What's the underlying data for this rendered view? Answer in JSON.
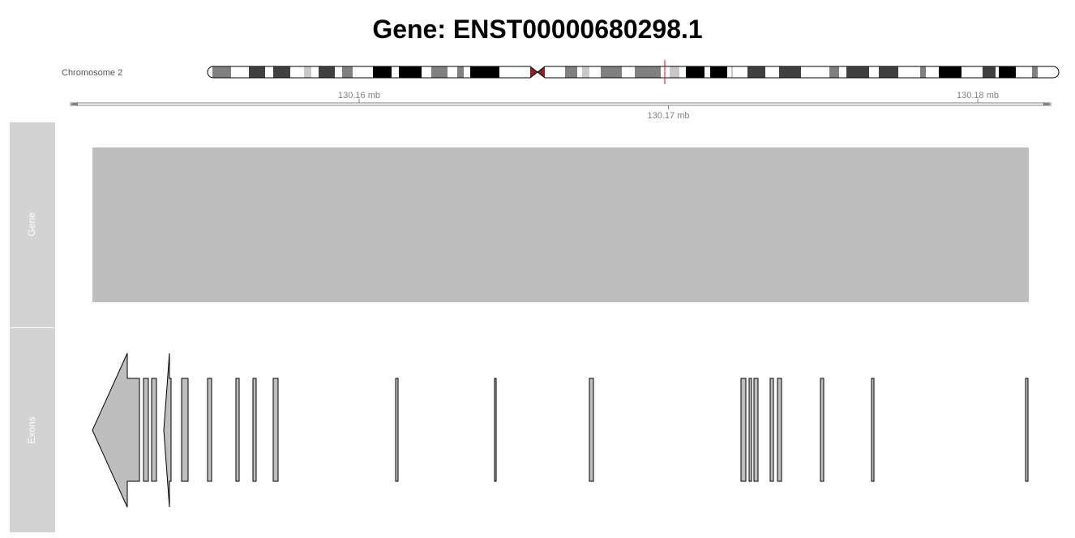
{
  "title": "Gene: ENST00000680298.1",
  "chromosome_label": "Chromosome 2",
  "colors": {
    "panel_bg": "#d3d3d3",
    "panel_text": "#ffffff",
    "gene_fill": "#bebebe",
    "exon_fill": "#bebebe",
    "exon_stroke": "#000000",
    "axis": "#808080",
    "ideogram_marker": "#ff0000",
    "centromere": "#8b2323"
  },
  "genome_axis": {
    "unit": "mb",
    "ticks": [
      {
        "value": 130.16,
        "label": "130.16 mb",
        "side": "above"
      },
      {
        "value": 130.17,
        "label": "130.17 mb",
        "side": "below"
      },
      {
        "value": 130.18,
        "label": "130.18 mb",
        "side": "above"
      }
    ]
  },
  "tracks": [
    {
      "name": "Gene",
      "label": "Gene"
    },
    {
      "name": "Exons",
      "label": "Exons"
    }
  ]
}
